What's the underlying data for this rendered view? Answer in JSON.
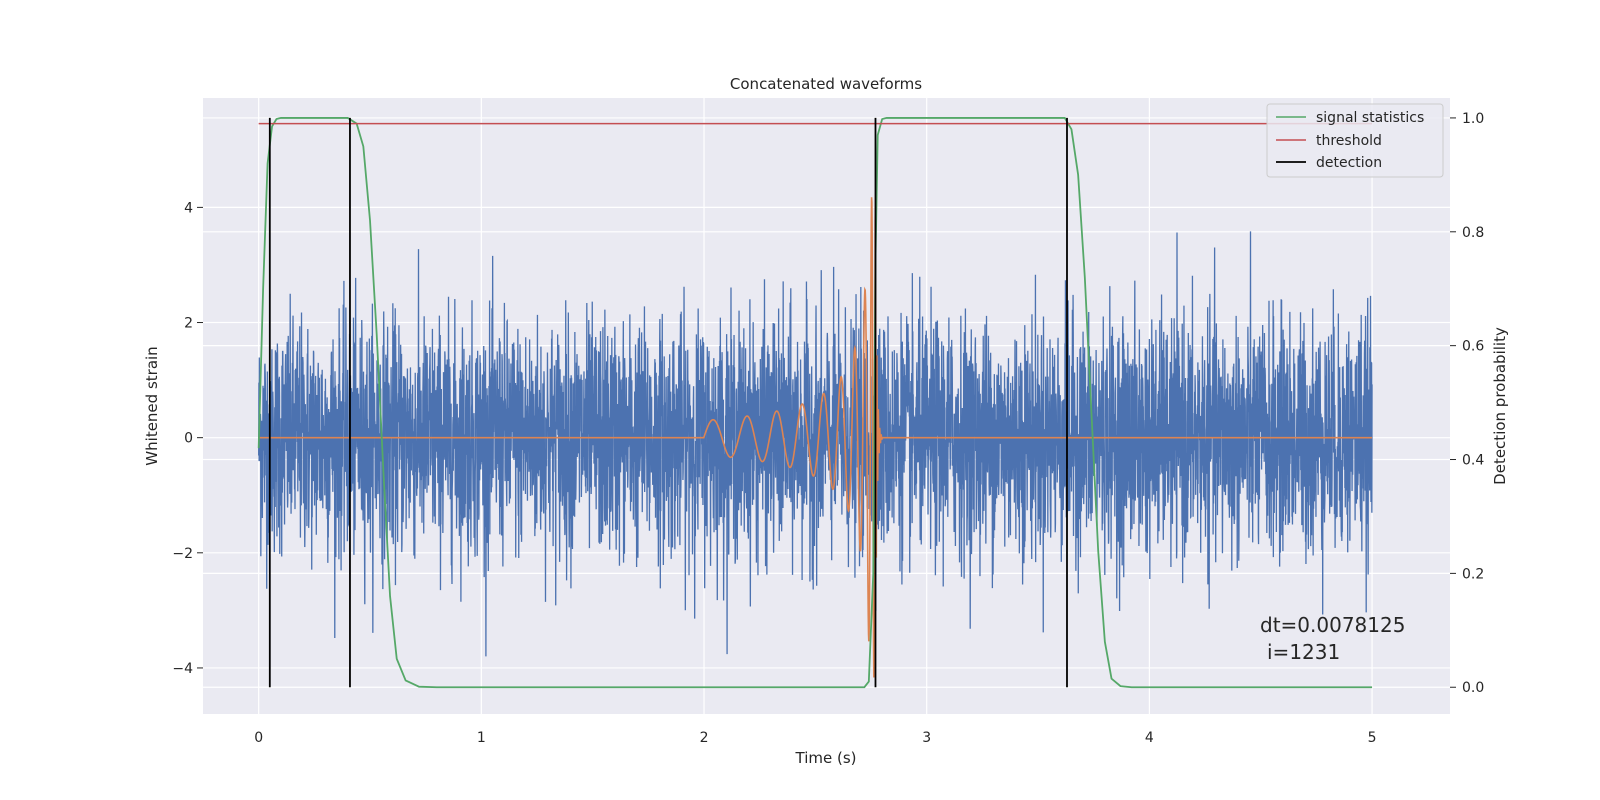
{
  "chart_data": {
    "type": "line",
    "title": "Concatenated waveforms",
    "xlabel": "Time (s)",
    "ylabel": "Whitened strain",
    "y2label": "Detection probability",
    "xlim": [
      -0.25,
      5.35
    ],
    "ylim": [
      -4.8,
      5.9
    ],
    "y2lim": [
      -0.047,
      1.035
    ],
    "x_ticks": [
      0,
      1,
      2,
      3,
      4,
      5
    ],
    "y_ticks": [
      -4,
      -2,
      0,
      2,
      4
    ],
    "y2_ticks": [
      0.0,
      0.2,
      0.4,
      0.6,
      0.8,
      1.0
    ],
    "y2_tick_labels": [
      "0.0",
      "0.2",
      "0.4",
      "0.6",
      "0.8",
      "1.0"
    ],
    "grid": true,
    "legend_position": "top-right",
    "colors": {
      "strain": "#4c72b0",
      "injected": "#dd8452",
      "signal": "#55a868",
      "threshold": "#c44e52",
      "detection": "#000000",
      "axes_bg": "#eaeaf2",
      "grid": "#ffffff"
    },
    "series": [
      {
        "name": "",
        "axis": "left",
        "description_kind": "noise",
        "x_range": [
          0,
          5
        ],
        "dt": 0.0078125,
        "amplitude_std": 1.0
      },
      {
        "name": "",
        "axis": "left",
        "description_kind": "chirp",
        "x_range": [
          0,
          5
        ],
        "chirp_start": 2.0,
        "chirp_merger": 2.77,
        "chirp_peak": 4.2,
        "chirp_start_amp": 0.3
      },
      {
        "name": "signal statistics",
        "axis": "right",
        "points": [
          [
            0.0,
            0.42
          ],
          [
            0.02,
            0.7
          ],
          [
            0.04,
            0.92
          ],
          [
            0.06,
            0.985
          ],
          [
            0.08,
            0.998
          ],
          [
            0.1,
            1.0
          ],
          [
            0.4,
            1.0
          ],
          [
            0.44,
            0.99
          ],
          [
            0.47,
            0.95
          ],
          [
            0.5,
            0.82
          ],
          [
            0.53,
            0.62
          ],
          [
            0.56,
            0.38
          ],
          [
            0.59,
            0.16
          ],
          [
            0.62,
            0.05
          ],
          [
            0.66,
            0.012
          ],
          [
            0.72,
            0.001
          ],
          [
            0.8,
            0.0
          ],
          [
            2.72,
            0.0
          ],
          [
            2.74,
            0.01
          ],
          [
            2.76,
            0.2
          ],
          [
            2.77,
            0.75
          ],
          [
            2.78,
            0.97
          ],
          [
            2.8,
            0.998
          ],
          [
            2.82,
            1.0
          ],
          [
            3.62,
            1.0
          ],
          [
            3.65,
            0.98
          ],
          [
            3.68,
            0.9
          ],
          [
            3.71,
            0.72
          ],
          [
            3.74,
            0.48
          ],
          [
            3.77,
            0.24
          ],
          [
            3.8,
            0.08
          ],
          [
            3.83,
            0.015
          ],
          [
            3.87,
            0.002
          ],
          [
            3.92,
            0.0
          ],
          [
            5.0,
            0.0
          ]
        ]
      },
      {
        "name": "threshold",
        "axis": "right",
        "y": 0.99,
        "x_range": [
          0,
          5
        ]
      }
    ],
    "detections": {
      "name": "detection",
      "x": [
        0.05,
        0.41,
        2.77,
        3.63
      ],
      "y_range": [
        0,
        1
      ]
    },
    "legend": [
      "signal statistics",
      "threshold",
      "detection"
    ],
    "annotation": [
      "dt=0.0078125",
      "i=1231"
    ]
  }
}
